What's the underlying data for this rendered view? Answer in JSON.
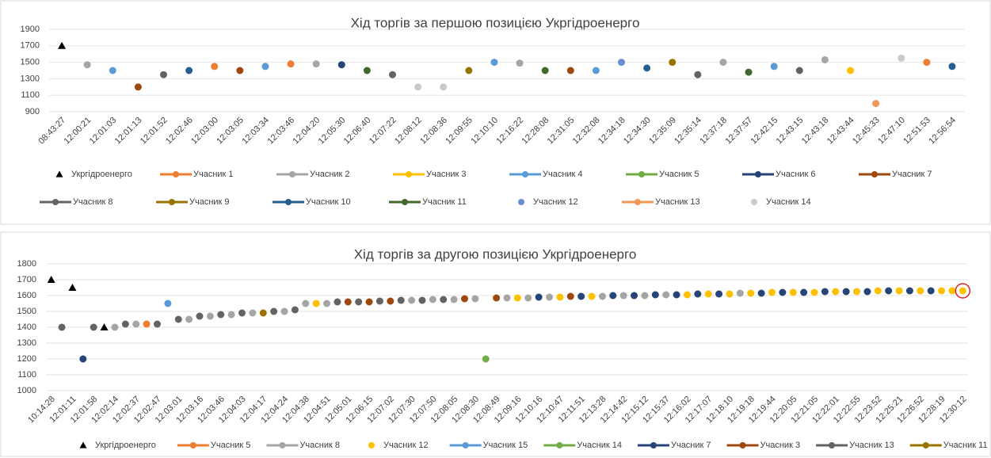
{
  "chart_data": [
    {
      "type": "scatter",
      "title": "Хід торгів за першою позицією Укргідроенерго",
      "categories": [
        "08:43:27",
        "12:00:21",
        "12:01:03",
        "12:01:13",
        "12:01:52",
        "12:02:46",
        "12:03:00",
        "12:03:05",
        "12:03:34",
        "12:03:46",
        "12:04:20",
        "12:05:30",
        "12:06:40",
        "12:07:22",
        "12:08:12",
        "12:08:36",
        "12:09:55",
        "12:10:10",
        "12:16:22",
        "12:28:08",
        "12:31:05",
        "12:32:08",
        "12:34:18",
        "12:34:30",
        "12:35:09",
        "12:35:14",
        "12:37:18",
        "12:37:57",
        "12:42:15",
        "12:43:15",
        "12:43:18",
        "12:43:44",
        "12:45:33",
        "12:47:10",
        "12:51:53",
        "12:56:54"
      ],
      "values": [
        1700,
        1470,
        1400,
        1200,
        1350,
        1400,
        1450,
        1400,
        1450,
        1480,
        1480,
        1470,
        1400,
        1350,
        1200,
        1200,
        1400,
        1500,
        1490,
        1400,
        1400,
        1400,
        1500,
        1430,
        1500,
        1350,
        1500,
        1380,
        1450,
        1400,
        1530,
        1400,
        1000,
        1550,
        1500,
        1450
      ],
      "colors": [
        "#000000",
        "#a5a5a5",
        "#5b9bd5",
        "#9e480e",
        "#636363",
        "#255e91",
        "#ed7d31",
        "#9e480e",
        "#5b9bd5",
        "#ed7d31",
        "#a5a5a5",
        "#264478",
        "#43682b",
        "#636363",
        "#c9c9c9",
        "#c9c9c9",
        "#997300",
        "#5b9bd5",
        "#a5a5a5",
        "#43682b",
        "#9e480e",
        "#5b9bd5",
        "#698ed0",
        "#255e91",
        "#997300",
        "#636363",
        "#a5a5a5",
        "#43682b",
        "#5b9bd5",
        "#636363",
        "#a5a5a5",
        "#ffc000",
        "#f1975a",
        "#c9c9c9",
        "#ed7d31",
        "#255e91"
      ],
      "series": [
        {
          "name": "Укргідроенерго",
          "color": "#000000",
          "marker": "triangle"
        },
        {
          "name": "Учасник 1",
          "color": "#ed7d31",
          "marker": "line"
        },
        {
          "name": "Учасник 2",
          "color": "#a5a5a5",
          "marker": "line"
        },
        {
          "name": "Учасник 3",
          "color": "#ffc000",
          "marker": "line"
        },
        {
          "name": "Учасник 4",
          "color": "#5b9bd5",
          "marker": "line"
        },
        {
          "name": "Учасник 5",
          "color": "#70ad47",
          "marker": "line"
        },
        {
          "name": "Учасник 6",
          "color": "#264478",
          "marker": "line"
        },
        {
          "name": "Учасник 7",
          "color": "#9e480e",
          "marker": "line"
        },
        {
          "name": "Учасник 8",
          "color": "#636363",
          "marker": "line"
        },
        {
          "name": "Учасник 9",
          "color": "#997300",
          "marker": "line"
        },
        {
          "name": "Учасник 10",
          "color": "#255e91",
          "marker": "line"
        },
        {
          "name": "Учасник 11",
          "color": "#43682b",
          "marker": "line"
        },
        {
          "name": "Учасник 12",
          "color": "#698ed0",
          "marker": "dot"
        },
        {
          "name": "Учасник 13",
          "color": "#f1975a",
          "marker": "line"
        },
        {
          "name": "Учасник 14",
          "color": "#c9c9c9",
          "marker": "dot"
        }
      ],
      "ylim": [
        900,
        1900
      ],
      "yticks": [
        900,
        1100,
        1300,
        1500,
        1700,
        1900
      ]
    },
    {
      "type": "scatter",
      "title": "Хід торгів за другою позицією Укргідроенерго",
      "categories": [
        "10:14:28",
        null,
        "12:01:11",
        null,
        "12:01:58",
        null,
        "12:02:14",
        null,
        "12:02:37",
        null,
        "12:02:47",
        null,
        "12:03:01",
        null,
        "12:03:16",
        null,
        "12:03:46",
        null,
        "12:04:03",
        null,
        "12:04:17",
        null,
        "12:04:24",
        null,
        "12:04:38",
        null,
        "12:04:51",
        null,
        "12:05:01",
        null,
        "12:06:15",
        null,
        "12:07:02",
        null,
        "12:07:30",
        null,
        "12:07:50",
        null,
        "12:08:05",
        null,
        "12:08:30",
        null,
        "12:08:49",
        null,
        "12:09:16",
        null,
        "12:10:16",
        null,
        "12:10:47",
        null,
        "12:11:51",
        null,
        "12:13:28",
        null,
        "12:14:42",
        null,
        "12:15:12",
        null,
        "12:15:37",
        null,
        "12:16:02",
        null,
        "12:17:07",
        null,
        "12:18:10",
        null,
        "12:19:18",
        null,
        "12:19:44",
        null,
        "12:20:05",
        null,
        "12:21:05",
        null,
        "12:22:01",
        null,
        "12:22:55",
        null,
        "12:23:52",
        null,
        "12:25:21",
        null,
        "12:26:52",
        null,
        "12:28:19",
        null,
        "12:30:12"
      ],
      "values": [
        1700,
        1400,
        1650,
        1200,
        1400,
        1400,
        1400,
        1420,
        1420,
        1420,
        1420,
        1550,
        1450,
        1450,
        1470,
        1470,
        1480,
        1480,
        1490,
        1490,
        1490,
        1500,
        1500,
        1510,
        1550,
        1550,
        1550,
        1560,
        1560,
        1560,
        1560,
        1565,
        1565,
        1570,
        1570,
        1570,
        1575,
        1575,
        1575,
        1580,
        1580,
        1200,
        1585,
        1585,
        1585,
        1585,
        1590,
        1590,
        1590,
        1595,
        1595,
        1595,
        1595,
        1600,
        1600,
        1600,
        1600,
        1605,
        1605,
        1605,
        1605,
        1610,
        1610,
        1610,
        1610,
        1615,
        1615,
        1615,
        1620,
        1620,
        1620,
        1620,
        1620,
        1625,
        1625,
        1625,
        1625,
        1625,
        1630,
        1630,
        1630,
        1630,
        1630,
        1630,
        1630,
        1630,
        1630
      ],
      "colors": [
        "#000000",
        "#636363",
        "#000000",
        "#264478",
        "#636363",
        "#000000",
        "#a5a5a5",
        "#636363",
        "#a5a5a5",
        "#ed7d31",
        "#636363",
        "#5b9bd5",
        "#636363",
        "#a5a5a5",
        "#636363",
        "#a5a5a5",
        "#636363",
        "#a5a5a5",
        "#636363",
        "#a5a5a5",
        "#997300",
        "#636363",
        "#a5a5a5",
        "#636363",
        "#a5a5a5",
        "#ffc000",
        "#a5a5a5",
        "#636363",
        "#9e480e",
        "#636363",
        "#9e480e",
        "#636363",
        "#9e480e",
        "#636363",
        "#a5a5a5",
        "#636363",
        "#a5a5a5",
        "#636363",
        "#a5a5a5",
        "#9e480e",
        "#a5a5a5",
        "#70ad47",
        "#9e480e",
        "#a5a5a5",
        "#ffc000",
        "#a5a5a5",
        "#264478",
        "#a5a5a5",
        "#ffc000",
        "#9e480e",
        "#264478",
        "#ffc000",
        "#a5a5a5",
        "#264478",
        "#a5a5a5",
        "#264478",
        "#a5a5a5",
        "#264478",
        "#a5a5a5",
        "#264478",
        "#ffc000",
        "#264478",
        "#ffc000",
        "#264478",
        "#ffc000",
        "#a5a5a5",
        "#ffc000",
        "#264478",
        "#ffc000",
        "#264478",
        "#ffc000",
        "#264478",
        "#ffc000",
        "#264478",
        "#ffc000",
        "#264478",
        "#ffc000",
        "#264478",
        "#ffc000",
        "#264478",
        "#ffc000",
        "#264478",
        "#ffc000",
        "#264478",
        "#ffc000",
        "#ffc000",
        "#ffc000"
      ],
      "series": [
        {
          "name": "Укргідроенерго",
          "color": "#000000",
          "marker": "triangle"
        },
        {
          "name": "Учасник 5",
          "color": "#ed7d31",
          "marker": "line"
        },
        {
          "name": "Учасник 8",
          "color": "#a5a5a5",
          "marker": "line"
        },
        {
          "name": "Учасник 12",
          "color": "#ffc000",
          "marker": "dot"
        },
        {
          "name": "Учасник 15",
          "color": "#5b9bd5",
          "marker": "line"
        },
        {
          "name": "Учасник 14",
          "color": "#70ad47",
          "marker": "line"
        },
        {
          "name": "Учасник 7",
          "color": "#264478",
          "marker": "line"
        },
        {
          "name": "Учасник 3",
          "color": "#9e480e",
          "marker": "line"
        },
        {
          "name": "Учасник 13",
          "color": "#636363",
          "marker": "line"
        },
        {
          "name": "Учасник 11",
          "color": "#997300",
          "marker": "line"
        }
      ],
      "highlight_point": 86,
      "ylim": [
        1000,
        1800
      ],
      "yticks": [
        1000,
        1100,
        1200,
        1300,
        1400,
        1500,
        1600,
        1700,
        1800
      ]
    }
  ]
}
